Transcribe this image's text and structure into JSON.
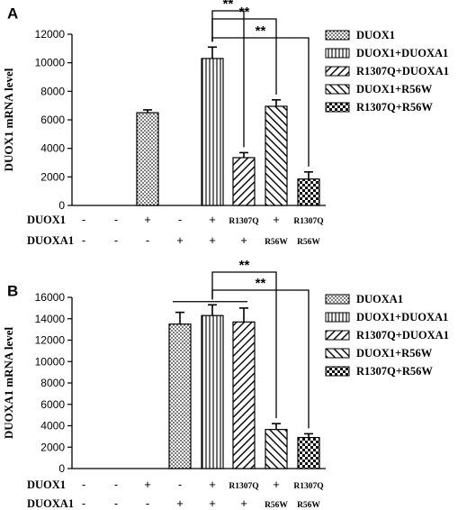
{
  "chart_data": [
    {
      "panel": "A",
      "type": "bar",
      "ylabel": "DUOX1 mRNA level",
      "ylim": [
        0,
        12000
      ],
      "yticks": [
        "0",
        "2000",
        "4000",
        "6000",
        "8000",
        "10000",
        "12000"
      ],
      "rows": [
        {
          "label": "DUOX1",
          "values": [
            "-",
            "-",
            "+",
            "-",
            "+",
            "R1307Q",
            "+",
            "R1307Q"
          ]
        },
        {
          "label": "DUOXA1",
          "values": [
            "-",
            "-",
            "-",
            "+",
            "+",
            "+",
            "R56W",
            "R56W"
          ]
        }
      ],
      "values": [
        0,
        0,
        6500,
        0,
        10300,
        3350,
        6950,
        1850
      ],
      "errors": [
        0,
        0,
        200,
        0,
        800,
        350,
        450,
        500
      ],
      "pattern_keys": [
        "",
        "",
        "dots",
        "",
        "vlines",
        "diag",
        "bdiag",
        "checker"
      ],
      "legend": [
        {
          "label": "DUOX1",
          "pattern": "dots"
        },
        {
          "label": "DUOX1+DUOXA1",
          "pattern": "vlines"
        },
        {
          "label": "R1307Q+DUOXA1",
          "pattern": "diag"
        },
        {
          "label": "DUOX1+R56W",
          "pattern": "bdiag"
        },
        {
          "label": "R1307Q+R56W",
          "pattern": "checker"
        }
      ],
      "significance": [
        {
          "from": 4,
          "to": 5,
          "label": "**"
        },
        {
          "from": 4,
          "to": 6,
          "label": "**"
        },
        {
          "from": 4,
          "to": 7,
          "label": "**"
        }
      ]
    },
    {
      "panel": "B",
      "type": "bar",
      "ylabel": "DUOXA1 mRNA level",
      "ylim": [
        0,
        16000
      ],
      "yticks": [
        "0",
        "2000",
        "4000",
        "6000",
        "8000",
        "10000",
        "12000",
        "14000",
        "16000"
      ],
      "rows": [
        {
          "label": "DUOX1",
          "values": [
            "-",
            "-",
            "+",
            "-",
            "+",
            "R1307Q",
            "+",
            "R1307Q"
          ]
        },
        {
          "label": "DUOXA1",
          "values": [
            "-",
            "-",
            "-",
            "+",
            "+",
            "+",
            "R56W",
            "R56W"
          ]
        }
      ],
      "values": [
        0,
        0,
        0,
        13500,
        14300,
        13700,
        3650,
        2900
      ],
      "errors": [
        0,
        0,
        0,
        1100,
        1000,
        1300,
        550,
        350
      ],
      "pattern_keys": [
        "",
        "",
        "",
        "dots",
        "vlines",
        "diag",
        "bdiag",
        "checker"
      ],
      "legend": [
        {
          "label": "DUOXA1",
          "pattern": "dots"
        },
        {
          "label": "DUOX1+DUOXA1",
          "pattern": "vlines"
        },
        {
          "label": "R1307Q+DUOXA1",
          "pattern": "diag"
        },
        {
          "label": "DUOX1+R56W",
          "pattern": "bdiag"
        },
        {
          "label": "R1307Q+R56W",
          "pattern": "checker"
        }
      ],
      "significance": [
        {
          "from": 4,
          "to": 6,
          "label": "**"
        },
        {
          "from": 4,
          "to": 7,
          "label": "**"
        }
      ]
    }
  ]
}
